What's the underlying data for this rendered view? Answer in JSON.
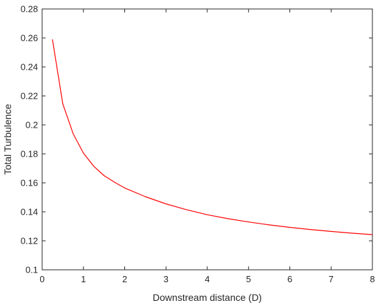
{
  "chart_data": {
    "type": "line",
    "title": "",
    "xlabel": "Downstream distance (D)",
    "ylabel": "Total Turbulence",
    "xlim": [
      0,
      8
    ],
    "ylim": [
      0.1,
      0.28
    ],
    "xticks": [
      0,
      1,
      2,
      3,
      4,
      5,
      6,
      7,
      8
    ],
    "yticks": [
      0.1,
      0.12,
      0.14,
      0.16,
      0.18,
      0.2,
      0.22,
      0.24,
      0.26,
      0.28
    ],
    "xtick_labels": [
      "0",
      "1",
      "2",
      "3",
      "4",
      "5",
      "6",
      "7",
      "8"
    ],
    "ytick_labels": [
      "0.1",
      "0.12",
      "0.14",
      "0.16",
      "0.18",
      "0.2",
      "0.22",
      "0.24",
      "0.26",
      "0.28"
    ],
    "grid": false,
    "legend": "none",
    "series": [
      {
        "color": "#ff0000",
        "x": [
          0.25,
          0.5,
          0.75,
          1.0,
          1.25,
          1.5,
          1.75,
          2.0,
          2.5,
          3.0,
          3.5,
          4.0,
          4.5,
          5.0,
          5.5,
          6.0,
          6.5,
          7.0,
          7.5,
          8.0
        ],
        "y": [
          0.259,
          0.2145,
          0.194,
          0.1805,
          0.1715,
          0.165,
          0.1605,
          0.1565,
          0.1505,
          0.1455,
          0.1415,
          0.138,
          0.1353,
          0.133,
          0.131,
          0.1293,
          0.1278,
          0.1265,
          0.1253,
          0.1243
        ]
      }
    ]
  }
}
